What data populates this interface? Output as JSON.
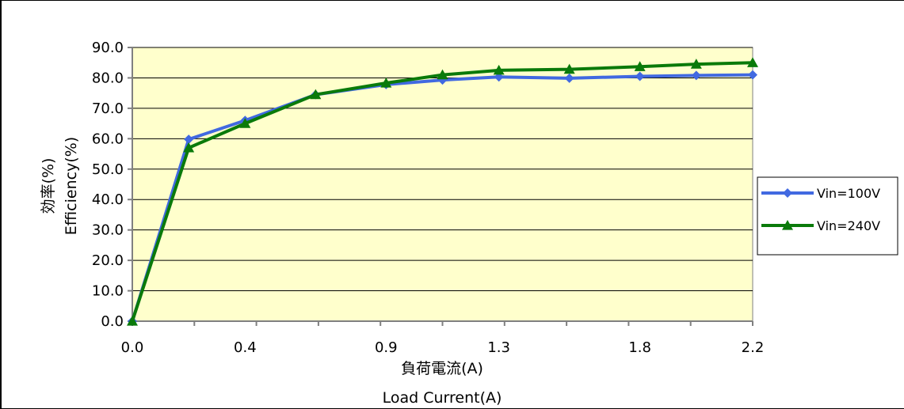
{
  "chart_data": {
    "type": "line",
    "x": [
      0.0,
      0.2,
      0.4,
      0.65,
      0.9,
      1.1,
      1.3,
      1.55,
      1.8,
      2.0,
      2.2
    ],
    "xtick_labels": [
      "0.0",
      "0.4",
      "0.9",
      "1.3",
      "1.8",
      "2.2"
    ],
    "xtick_values": [
      0.0,
      0.4,
      0.9,
      1.3,
      1.8,
      2.2
    ],
    "ytick_labels": [
      "0.0",
      "10.0",
      "20.0",
      "30.0",
      "40.0",
      "50.0",
      "60.0",
      "70.0",
      "80.0",
      "90.0"
    ],
    "ylim": [
      0,
      90
    ],
    "xlim": [
      0.0,
      2.2
    ],
    "xlabel_line1": "負荷電流(A)",
    "xlabel_line2": "Load Current(A)",
    "ylabel_line1": "効率(%)",
    "ylabel_line2": "Efficiency(%)",
    "series": [
      {
        "name": "Vin=100V",
        "color": "#4169e1",
        "marker": "diamond",
        "values": [
          0.0,
          59.8,
          66.0,
          74.5,
          77.8,
          79.3,
          80.3,
          79.9,
          80.5,
          80.8,
          81.0
        ]
      },
      {
        "name": "Vin=240V",
        "color": "#0a7a0a",
        "marker": "triangle",
        "values": [
          0.0,
          57.0,
          65.0,
          74.5,
          78.3,
          81.0,
          82.5,
          82.8,
          83.7,
          84.5,
          85.0
        ]
      }
    ],
    "plot_background": "#ffffcc",
    "grid": true,
    "legend_position": "right"
  }
}
